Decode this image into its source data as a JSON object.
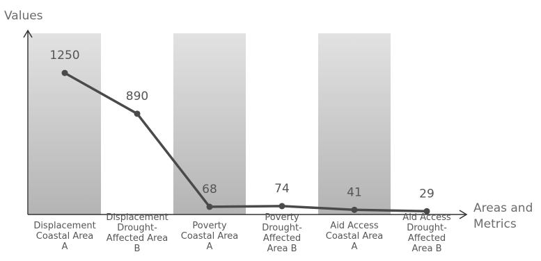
{
  "chart_data": {
    "type": "line",
    "ylabel": "Values",
    "xlabel": "Areas and Metrics",
    "categories": [
      "Displacement Coastal Area A",
      "Displacement Drought-Affected Area B",
      "Poverty Coastal Area A",
      "Poverty Drought-Affected Area B",
      "Aid Access Coastal Area A",
      "Aid Access Drought-Affected Area B"
    ],
    "category_lines": [
      [
        "Displacement",
        "Coastal Area",
        "A"
      ],
      [
        "Displacement",
        "Drought-",
        "Affected Area",
        "B"
      ],
      [
        "Poverty",
        "Coastal Area",
        "A"
      ],
      [
        "Poverty",
        "Drought-",
        "Affected",
        "Area B"
      ],
      [
        "Aid Access",
        "Coastal Area",
        "A"
      ],
      [
        "Aid Access",
        "Drought-",
        "Affected",
        "Area B"
      ]
    ],
    "series": [
      {
        "values": [
          1250,
          890,
          68,
          74,
          41,
          29
        ]
      }
    ],
    "data_labels": [
      "1250",
      "890",
      "68",
      "74",
      "41",
      "29"
    ],
    "ylim": [
      0,
      1600
    ],
    "grid": false,
    "colors": {
      "line": "#4a4a4a",
      "band_top": "#e2e2e2",
      "band_bottom": "#b4b4b4",
      "axis": "#333333"
    }
  }
}
